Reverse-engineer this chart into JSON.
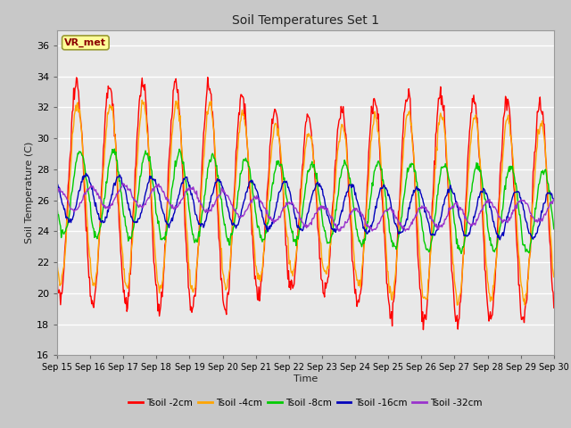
{
  "title": "Soil Temperatures Set 1",
  "xlabel": "Time",
  "ylabel": "Soil Temperature (C)",
  "ylim": [
    16,
    37
  ],
  "yticks": [
    16,
    18,
    20,
    22,
    24,
    26,
    28,
    30,
    32,
    34,
    36
  ],
  "annotation_text": "VR_met",
  "annotation_color": "#8B0000",
  "annotation_bg": "#FFFF99",
  "fig_bg": "#C8C8C8",
  "plot_bg": "#E8E8E8",
  "lines": [
    {
      "label": "Tsoil -2cm",
      "color": "#FF0000"
    },
    {
      "label": "Tsoil -4cm",
      "color": "#FFA500"
    },
    {
      "label": "Tsoil -8cm",
      "color": "#00CC00"
    },
    {
      "label": "Tsoil -16cm",
      "color": "#0000BB"
    },
    {
      "label": "Tsoil -32cm",
      "color": "#9933CC"
    }
  ],
  "x_tick_labels": [
    "Sep 15",
    "Sep 16",
    "Sep 17",
    "Sep 18",
    "Sep 19",
    "Sep 20",
    "Sep 21",
    "Sep 22",
    "Sep 23",
    "Sep 24",
    "Sep 25",
    "Sep 26",
    "Sep 27",
    "Sep 28",
    "Sep 29",
    "Sep 30"
  ],
  "num_days": 15,
  "pts_per_day": 48,
  "grid_color": "#FFFFFF",
  "tick_fontsize": 7
}
